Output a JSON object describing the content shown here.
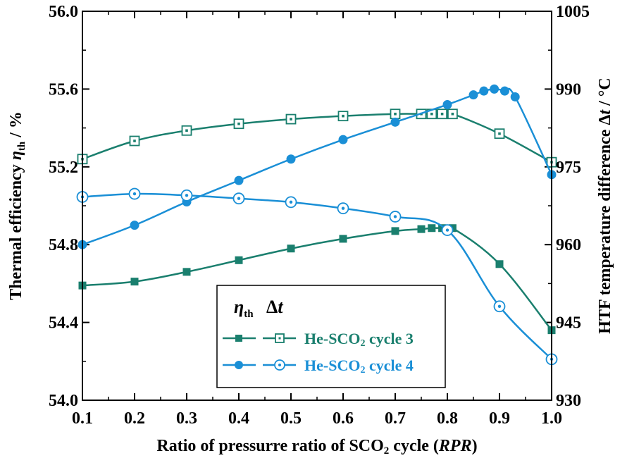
{
  "chart_data": {
    "type": "line",
    "xlabel": {
      "main": "Ratio of pressurre ratio of SCO",
      "sub": "2",
      "tail": " cycle (",
      "italic": "RPR",
      "end": ")"
    },
    "ylabel_left": {
      "main": "Thermal efficiency ",
      "sym": "η",
      "sub": "th",
      "unit": " / %"
    },
    "ylabel_right": {
      "main": "HTF temperature difference Δ",
      "sym": "t",
      "unit": " / °C"
    },
    "xlim": [
      0.1,
      1.0
    ],
    "ylim_left": [
      54.0,
      56.0
    ],
    "ylim_right": [
      930,
      1005
    ],
    "x_ticks": [
      "0.1",
      "0.2",
      "0.3",
      "0.4",
      "0.5",
      "0.6",
      "0.7",
      "0.8",
      "0.9",
      "1.0"
    ],
    "y_ticks_left": [
      "54.0",
      "54.4",
      "54.8",
      "55.2",
      "55.6",
      "56.0"
    ],
    "y_ticks_right": [
      "930",
      "945",
      "960",
      "975",
      "990",
      "1005"
    ],
    "legend": {
      "header_eta": "η",
      "header_eta_sub": "th",
      "header_dt": "Δ",
      "header_dt_sym": "t",
      "entries": [
        {
          "label_main": "He-SCO",
          "label_sub": "2",
          "label_tail": " cycle 3",
          "color": "#1a7f6e"
        },
        {
          "label_main": "He-SCO",
          "label_sub": "2",
          "label_tail": " cycle 4",
          "color": "#1a8fd6"
        }
      ]
    },
    "series": [
      {
        "name": "He-SCO2 cycle 3 ηth",
        "axis": "left",
        "marker": "filled-square",
        "color": "#1a7f6e",
        "x": [
          0.1,
          0.2,
          0.3,
          0.4,
          0.5,
          0.6,
          0.7,
          0.75,
          0.77,
          0.79,
          0.81,
          0.9,
          1.0
        ],
        "y": [
          54.59,
          54.61,
          54.66,
          54.72,
          54.78,
          54.83,
          54.87,
          54.88,
          54.885,
          54.885,
          54.885,
          54.7,
          54.36
        ]
      },
      {
        "name": "He-SCO2 cycle 3 Δt",
        "axis": "right",
        "marker": "open-square",
        "color": "#1a7f6e",
        "x": [
          0.1,
          0.2,
          0.3,
          0.4,
          0.5,
          0.6,
          0.7,
          0.75,
          0.77,
          0.79,
          0.81,
          0.9,
          1.0
        ],
        "y": [
          976.5,
          980.0,
          982.0,
          983.3,
          984.2,
          984.8,
          985.2,
          985.2,
          985.2,
          985.2,
          985.2,
          981.4,
          975.9
        ]
      },
      {
        "name": "He-SCO2 cycle 4 ηth",
        "axis": "left",
        "marker": "filled-circle",
        "color": "#1a8fd6",
        "x": [
          0.1,
          0.2,
          0.3,
          0.4,
          0.5,
          0.6,
          0.7,
          0.8,
          0.85,
          0.87,
          0.89,
          0.91,
          0.93,
          1.0
        ],
        "y": [
          54.8,
          54.9,
          55.02,
          55.13,
          55.24,
          55.34,
          55.43,
          55.52,
          55.57,
          55.59,
          55.6,
          55.59,
          55.56,
          55.16
        ]
      },
      {
        "name": "He-SCO2 cycle 4 Δt",
        "axis": "right",
        "marker": "open-circle",
        "color": "#1a8fd6",
        "x": [
          0.1,
          0.2,
          0.3,
          0.4,
          0.5,
          0.6,
          0.7,
          0.8,
          0.9,
          1.0
        ],
        "y": [
          969.2,
          969.8,
          969.5,
          968.9,
          968.2,
          967.0,
          965.4,
          962.8,
          948.1,
          937.9
        ]
      }
    ]
  }
}
